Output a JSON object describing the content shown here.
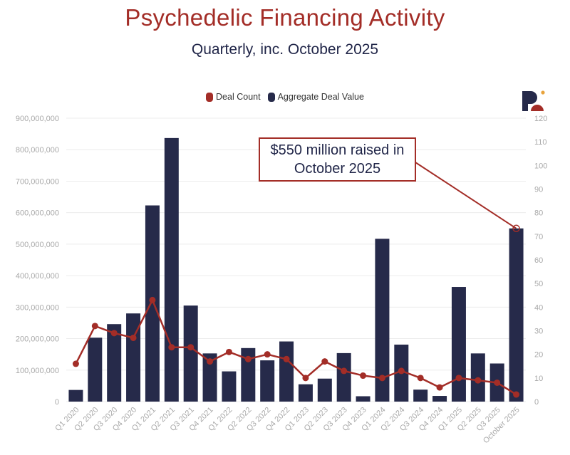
{
  "header": {
    "title": "Psychedelic Financing Activity",
    "subtitle": "Quarterly, inc. October 2025"
  },
  "legend": {
    "deal_count": "Deal Count",
    "aggregate_value": "Aggregate Deal Value"
  },
  "annotation": {
    "text": "$550 million raised in October 2025"
  },
  "colors": {
    "bar": "#262a4a",
    "line": "#a32d27",
    "title": "#a32d27"
  },
  "chart_data": {
    "type": "bar+line",
    "title": "Psychedelic Financing Activity",
    "subtitle": "Quarterly, inc. October 2025",
    "categories": [
      "Q1 2020",
      "Q2 2020",
      "Q3 2020",
      "Q4 2020",
      "Q1 2021",
      "Q2 2021",
      "Q3 2021",
      "Q4 2021",
      "Q1 2022",
      "Q2 2022",
      "Q3 2022",
      "Q4 2022",
      "Q1 2023",
      "Q2 2023",
      "Q3 2023",
      "Q4 2023",
      "Q1 2024",
      "Q2 2024",
      "Q3 2024",
      "Q4 2024",
      "Q1 2025",
      "Q2 2025",
      "Q3 2025",
      "October 2025"
    ],
    "series": [
      {
        "name": "Aggregate Deal Value",
        "type": "bar",
        "axis": "left",
        "values": [
          37000000,
          203000000,
          246000000,
          280000000,
          623000000,
          837000000,
          305000000,
          153000000,
          96000000,
          170000000,
          131000000,
          191000000,
          55000000,
          73000000,
          154000000,
          17000000,
          517000000,
          181000000,
          38000000,
          18000000,
          364000000,
          153000000,
          121000000,
          550000000
        ]
      },
      {
        "name": "Deal Count",
        "type": "line",
        "axis": "right",
        "values": [
          16,
          32,
          29,
          27,
          43,
          23,
          23,
          17,
          21,
          18,
          20,
          18,
          10,
          17,
          13,
          11,
          10,
          13,
          10,
          6,
          10,
          9,
          8,
          3
        ]
      }
    ],
    "y_left": {
      "min": 0,
      "max": 900000000,
      "step": 100000000,
      "ticks": [
        "0",
        "100,000,000",
        "200,000,000",
        "300,000,000",
        "400,000,000",
        "500,000,000",
        "600,000,000",
        "700,000,000",
        "800,000,000",
        "900,000,000"
      ]
    },
    "y_right": {
      "min": 0,
      "max": 120,
      "step": 10,
      "ticks": [
        "0",
        "10",
        "20",
        "30",
        "40",
        "50",
        "60",
        "70",
        "80",
        "90",
        "100",
        "110",
        "120"
      ]
    },
    "legend_position": "top-center",
    "grid": true
  }
}
